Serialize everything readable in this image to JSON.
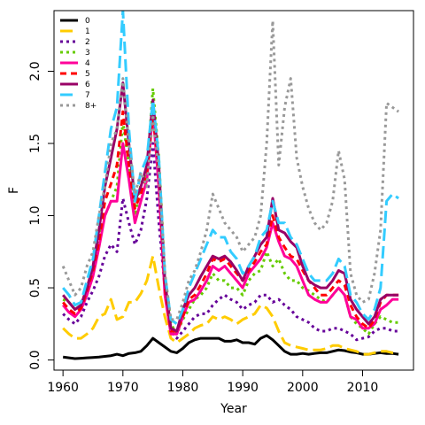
{
  "chart_data": {
    "type": "line",
    "title": "",
    "xlabel": "Year",
    "ylabel": "F",
    "xlim": [
      1958.5,
      2018.5
    ],
    "ylim": [
      -0.07,
      2.42
    ],
    "xticks": [
      1960,
      1970,
      1980,
      1990,
      2000,
      2010
    ],
    "yticks": [
      0.0,
      0.5,
      1.0,
      1.5,
      2.0
    ],
    "ytick_labels": [
      "0.0",
      "0.5",
      "1.0",
      "1.5",
      "2.0"
    ],
    "legend_position": "top-left",
    "legend": [
      {
        "label": "0",
        "color": "#000000",
        "dash": "solid",
        "width": 3
      },
      {
        "label": "1",
        "color": "#FFCC00",
        "dash": "long",
        "width": 3
      },
      {
        "label": "2",
        "color": "#660099",
        "dash": "dot",
        "width": 3
      },
      {
        "label": "3",
        "color": "#66CC00",
        "dash": "dot",
        "width": 3
      },
      {
        "label": "4",
        "color": "#FF0099",
        "dash": "solid",
        "width": 3
      },
      {
        "label": "5",
        "color": "#FF0000",
        "dash": "dash",
        "width": 3
      },
      {
        "label": "6",
        "color": "#990066",
        "dash": "solid",
        "width": 3
      },
      {
        "label": "7",
        "color": "#33CCFF",
        "dash": "long",
        "width": 3
      },
      {
        "label": "8+",
        "color": "#999999",
        "dash": "dot",
        "width": 3
      }
    ],
    "years": [
      1960,
      1961,
      1962,
      1963,
      1964,
      1965,
      1966,
      1967,
      1968,
      1969,
      1970,
      1971,
      1972,
      1973,
      1974,
      1975,
      1976,
      1977,
      1978,
      1979,
      1980,
      1981,
      1982,
      1983,
      1984,
      1985,
      1986,
      1987,
      1988,
      1989,
      1990,
      1991,
      1992,
      1993,
      1994,
      1995,
      1996,
      1997,
      1998,
      1999,
      2000,
      2001,
      2002,
      2003,
      2004,
      2005,
      2006,
      2007,
      2008,
      2009,
      2010,
      2011,
      2012,
      2013,
      2014,
      2015,
      2016
    ],
    "series": [
      {
        "name": "0",
        "color": "#000000",
        "dash": "solid",
        "width": 3,
        "values": [
          0.02,
          0.015,
          0.01,
          0.012,
          0.015,
          0.018,
          0.02,
          0.025,
          0.03,
          0.04,
          0.03,
          0.045,
          0.05,
          0.06,
          0.1,
          0.15,
          0.12,
          0.09,
          0.06,
          0.05,
          0.08,
          0.12,
          0.14,
          0.15,
          0.15,
          0.15,
          0.15,
          0.13,
          0.13,
          0.14,
          0.12,
          0.12,
          0.11,
          0.15,
          0.17,
          0.14,
          0.1,
          0.06,
          0.04,
          0.04,
          0.045,
          0.04,
          0.045,
          0.05,
          0.05,
          0.06,
          0.07,
          0.065,
          0.055,
          0.05,
          0.04,
          0.04,
          0.045,
          0.05,
          0.045,
          0.045,
          0.04
        ]
      },
      {
        "name": "1",
        "color": "#FFCC00",
        "dash": "long",
        "width": 3,
        "values": [
          0.22,
          0.18,
          0.15,
          0.15,
          0.18,
          0.22,
          0.3,
          0.32,
          0.42,
          0.28,
          0.3,
          0.4,
          0.4,
          0.46,
          0.55,
          0.72,
          0.5,
          0.3,
          0.15,
          0.12,
          0.15,
          0.18,
          0.22,
          0.24,
          0.25,
          0.3,
          0.28,
          0.3,
          0.28,
          0.25,
          0.28,
          0.3,
          0.32,
          0.38,
          0.36,
          0.3,
          0.2,
          0.12,
          0.1,
          0.09,
          0.08,
          0.07,
          0.07,
          0.07,
          0.08,
          0.1,
          0.1,
          0.08,
          0.07,
          0.06,
          0.04,
          0.04,
          0.05,
          0.06,
          0.06,
          0.05,
          0.05
        ]
      },
      {
        "name": "2",
        "color": "#660099",
        "dash": "dot",
        "width": 3,
        "values": [
          0.32,
          0.28,
          0.25,
          0.3,
          0.4,
          0.48,
          0.58,
          0.72,
          0.8,
          0.75,
          1.12,
          0.95,
          0.8,
          0.9,
          1.12,
          1.5,
          0.95,
          0.5,
          0.2,
          0.15,
          0.2,
          0.25,
          0.3,
          0.32,
          0.32,
          0.38,
          0.42,
          0.45,
          0.42,
          0.4,
          0.35,
          0.38,
          0.4,
          0.45,
          0.45,
          0.4,
          0.42,
          0.38,
          0.35,
          0.3,
          0.28,
          0.26,
          0.22,
          0.2,
          0.2,
          0.22,
          0.22,
          0.2,
          0.18,
          0.14,
          0.15,
          0.16,
          0.2,
          0.22,
          0.22,
          0.2,
          0.2
        ]
      },
      {
        "name": "3",
        "color": "#66CC00",
        "dash": "dot",
        "width": 3,
        "values": [
          0.42,
          0.4,
          0.35,
          0.38,
          0.5,
          0.62,
          0.85,
          1.0,
          1.1,
          1.2,
          1.65,
          1.35,
          1.0,
          1.22,
          1.3,
          1.88,
          1.4,
          0.6,
          0.25,
          0.18,
          0.28,
          0.35,
          0.42,
          0.45,
          0.5,
          0.6,
          0.55,
          0.55,
          0.5,
          0.5,
          0.45,
          0.55,
          0.6,
          0.62,
          0.75,
          0.65,
          0.7,
          0.6,
          0.55,
          0.55,
          0.5,
          0.48,
          0.45,
          0.42,
          0.4,
          0.45,
          0.5,
          0.45,
          0.3,
          0.25,
          0.22,
          0.18,
          0.25,
          0.3,
          0.28,
          0.26,
          0.26
        ]
      },
      {
        "name": "4",
        "color": "#FF0099",
        "dash": "solid",
        "width": 3,
        "values": [
          0.38,
          0.33,
          0.3,
          0.35,
          0.45,
          0.58,
          0.78,
          1.0,
          1.1,
          1.1,
          1.5,
          1.25,
          0.95,
          1.1,
          1.25,
          1.72,
          1.2,
          0.45,
          0.18,
          0.18,
          0.3,
          0.4,
          0.42,
          0.48,
          0.55,
          0.65,
          0.62,
          0.65,
          0.6,
          0.55,
          0.5,
          0.6,
          0.65,
          0.7,
          0.78,
          0.95,
          0.82,
          0.72,
          0.7,
          0.65,
          0.55,
          0.45,
          0.42,
          0.4,
          0.4,
          0.45,
          0.5,
          0.45,
          0.3,
          0.28,
          0.22,
          0.22,
          0.25,
          0.35,
          0.38,
          0.42,
          0.42
        ]
      },
      {
        "name": "5",
        "color": "#FF0000",
        "dash": "dash",
        "width": 3,
        "values": [
          0.4,
          0.35,
          0.32,
          0.36,
          0.48,
          0.62,
          0.82,
          1.1,
          1.22,
          1.35,
          1.72,
          1.35,
          1.05,
          1.15,
          1.3,
          1.7,
          1.3,
          0.5,
          0.2,
          0.2,
          0.3,
          0.42,
          0.45,
          0.52,
          0.6,
          0.7,
          0.68,
          0.7,
          0.65,
          0.6,
          0.55,
          0.62,
          0.68,
          0.75,
          0.8,
          1.0,
          0.85,
          0.78,
          0.72,
          0.7,
          0.62,
          0.55,
          0.5,
          0.45,
          0.45,
          0.5,
          0.55,
          0.52,
          0.38,
          0.3,
          0.25,
          0.22,
          0.28,
          0.4,
          0.45,
          0.45,
          0.45
        ]
      },
      {
        "name": "6",
        "color": "#990066",
        "dash": "solid",
        "width": 3,
        "values": [
          0.45,
          0.4,
          0.35,
          0.38,
          0.5,
          0.65,
          0.9,
          1.2,
          1.4,
          1.6,
          1.92,
          1.5,
          1.1,
          1.2,
          1.35,
          1.8,
          1.35,
          0.55,
          0.22,
          0.2,
          0.35,
          0.45,
          0.5,
          0.58,
          0.65,
          0.72,
          0.7,
          0.72,
          0.68,
          0.62,
          0.55,
          0.65,
          0.72,
          0.8,
          0.85,
          1.12,
          0.9,
          0.88,
          0.82,
          0.78,
          0.65,
          0.55,
          0.52,
          0.5,
          0.5,
          0.55,
          0.62,
          0.6,
          0.42,
          0.35,
          0.3,
          0.25,
          0.3,
          0.42,
          0.45,
          0.45,
          0.45
        ]
      },
      {
        "name": "7",
        "color": "#33CCFF",
        "dash": "long",
        "width": 3,
        "values": [
          0.5,
          0.45,
          0.38,
          0.4,
          0.55,
          0.7,
          1.0,
          1.3,
          1.6,
          1.75,
          2.42,
          1.6,
          1.1,
          1.3,
          1.4,
          1.8,
          1.4,
          0.6,
          0.28,
          0.25,
          0.35,
          0.5,
          0.6,
          0.7,
          0.8,
          0.9,
          0.85,
          0.85,
          0.75,
          0.7,
          0.6,
          0.65,
          0.72,
          0.85,
          0.9,
          1.1,
          0.95,
          0.95,
          0.85,
          0.8,
          0.7,
          0.6,
          0.55,
          0.55,
          0.55,
          0.6,
          0.7,
          0.65,
          0.45,
          0.4,
          0.32,
          0.28,
          0.35,
          0.5,
          1.1,
          1.15,
          1.12
        ]
      },
      {
        "name": "8+",
        "color": "#999999",
        "dash": "dot",
        "width": 3,
        "values": [
          0.65,
          0.55,
          0.45,
          0.5,
          0.65,
          0.75,
          1.0,
          1.2,
          1.5,
          1.6,
          1.95,
          1.5,
          1.15,
          1.3,
          1.2,
          1.7,
          1.3,
          0.6,
          0.28,
          0.28,
          0.4,
          0.55,
          0.62,
          0.75,
          0.9,
          1.15,
          1.05,
          0.95,
          0.9,
          0.85,
          0.75,
          0.8,
          0.85,
          1.0,
          1.5,
          2.35,
          1.35,
          1.75,
          1.95,
          1.4,
          1.2,
          1.05,
          0.95,
          0.9,
          0.95,
          1.1,
          1.45,
          1.25,
          0.6,
          0.45,
          0.4,
          0.42,
          0.6,
          0.9,
          1.78,
          1.75,
          1.72
        ]
      }
    ]
  }
}
